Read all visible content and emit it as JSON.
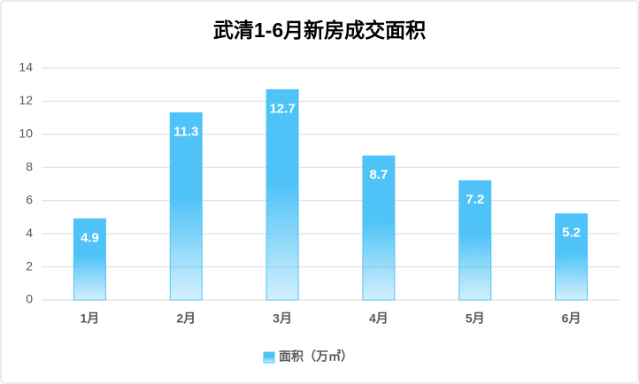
{
  "chart_data": {
    "type": "bar",
    "title": "武清1-6月新房成交面积",
    "categories": [
      "1月",
      "2月",
      "3月",
      "4月",
      "5月",
      "6月"
    ],
    "series": [
      {
        "name": "面积（万㎡）",
        "color": "#4fc3f7",
        "values": [
          4.9,
          11.3,
          12.7,
          8.7,
          7.2,
          5.2
        ]
      }
    ],
    "ylim": [
      0,
      14
    ],
    "yticks": [
      0,
      2,
      4,
      6,
      8,
      10,
      12,
      14
    ],
    "grid": true,
    "legend": "bottom"
  }
}
